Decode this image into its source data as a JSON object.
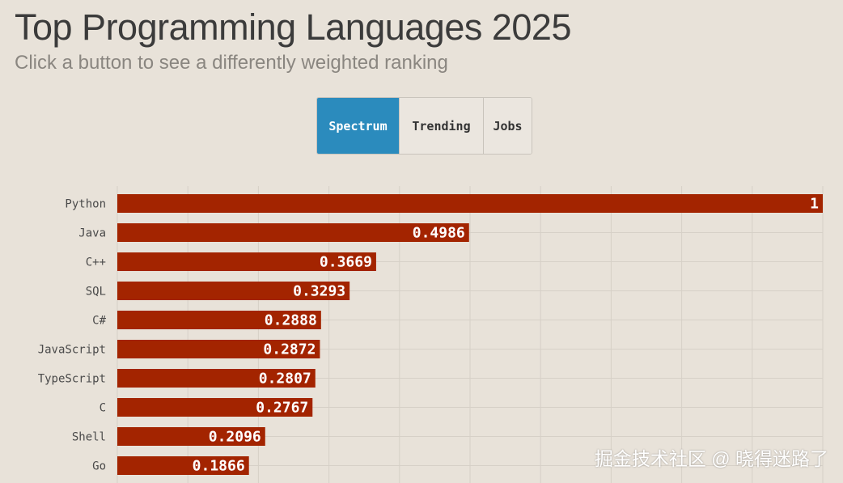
{
  "header": {
    "title": "Top Programming Languages 2025",
    "subtitle": "Click a button to see a differently weighted ranking"
  },
  "buttons": [
    {
      "label": "Spectrum",
      "active": true
    },
    {
      "label": "Trending",
      "active": false
    },
    {
      "label": "Jobs",
      "active": false
    }
  ],
  "colors": {
    "bar": "#a32400",
    "active_button": "#2b8bbd",
    "background": "#e8e2d9",
    "grid": "#d6d0c7"
  },
  "chart_data": {
    "type": "bar",
    "orientation": "horizontal",
    "categories": [
      "Python",
      "Java",
      "C++",
      "SQL",
      "C#",
      "JavaScript",
      "TypeScript",
      "C",
      "Shell",
      "Go"
    ],
    "values": [
      1,
      0.4986,
      0.3669,
      0.3293,
      0.2888,
      0.2872,
      0.2807,
      0.2767,
      0.2096,
      0.1866
    ],
    "xlim": [
      0,
      1
    ],
    "grid": true,
    "data_labels": true
  },
  "watermark": "掘金技术社区 @ 晓得迷路了"
}
